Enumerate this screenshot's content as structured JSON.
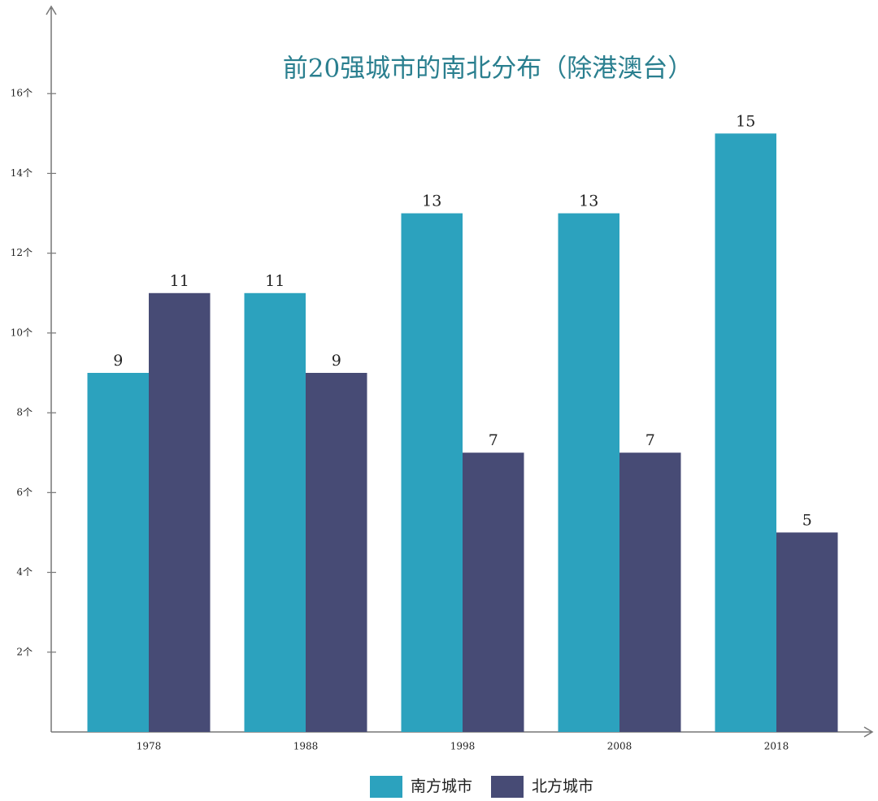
{
  "chart_data": {
    "type": "bar",
    "title": "前20强城市的南北分布（除港澳台）",
    "categories": [
      "1978",
      "1988",
      "1998",
      "2008",
      "2018"
    ],
    "series": [
      {
        "name": "南方城市",
        "color": "#2ca2be",
        "values": [
          9,
          11,
          13,
          13,
          15
        ]
      },
      {
        "name": "北方城市",
        "color": "#474b75",
        "values": [
          11,
          9,
          7,
          7,
          5
        ]
      }
    ],
    "ylim": [
      0,
      18
    ],
    "yticks": [
      {
        "value": 2,
        "label": "2个"
      },
      {
        "value": 4,
        "label": "4个"
      },
      {
        "value": 6,
        "label": "6个"
      },
      {
        "value": 8,
        "label": "8个"
      },
      {
        "value": 10,
        "label": "10个"
      },
      {
        "value": 12,
        "label": "12个"
      },
      {
        "value": 14,
        "label": "14个"
      },
      {
        "value": 16,
        "label": "16个"
      }
    ],
    "grid": false
  }
}
